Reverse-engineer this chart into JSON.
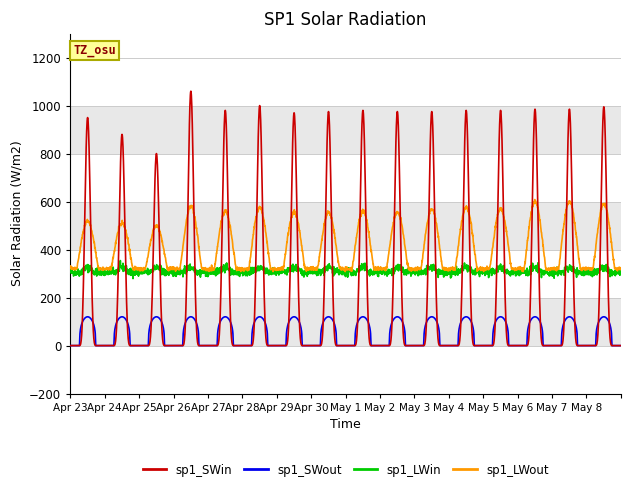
{
  "title": "SP1 Solar Radiation",
  "xlabel": "Time",
  "ylabel": "Solar Radiation (W/m2)",
  "ylim": [
    -200,
    1300
  ],
  "yticks": [
    -200,
    0,
    200,
    400,
    600,
    800,
    1000,
    1200
  ],
  "colors": {
    "SWin": "#cc0000",
    "SWout": "#0000ee",
    "LWin": "#00cc00",
    "LWout": "#ff9900"
  },
  "legend_labels": [
    "sp1_SWin",
    "sp1_SWout",
    "sp1_LWin",
    "sp1_LWout"
  ],
  "tz_label": "TZ_osu",
  "bg_color": "#ffffff",
  "n_days": 16,
  "x_tick_labels": [
    "Apr 23",
    "Apr 24",
    "Apr 25",
    "Apr 26",
    "Apr 27",
    "Apr 28",
    "Apr 29",
    "Apr 30",
    "May 1",
    "May 2",
    "May 3",
    "May 4",
    "May 5",
    "May 6",
    "May 7",
    "May 8"
  ],
  "sw_in_peaks": [
    950,
    880,
    800,
    1060,
    980,
    1000,
    970,
    975,
    980,
    975,
    975,
    980,
    980,
    985,
    985,
    995
  ],
  "lw_out_peaks": [
    520,
    510,
    500,
    580,
    560,
    575,
    555,
    555,
    560,
    555,
    570,
    575,
    570,
    600,
    600,
    590
  ],
  "band_colors": [
    "#ffffff",
    "#e8e8e8"
  ],
  "grid_color": "#cccccc"
}
